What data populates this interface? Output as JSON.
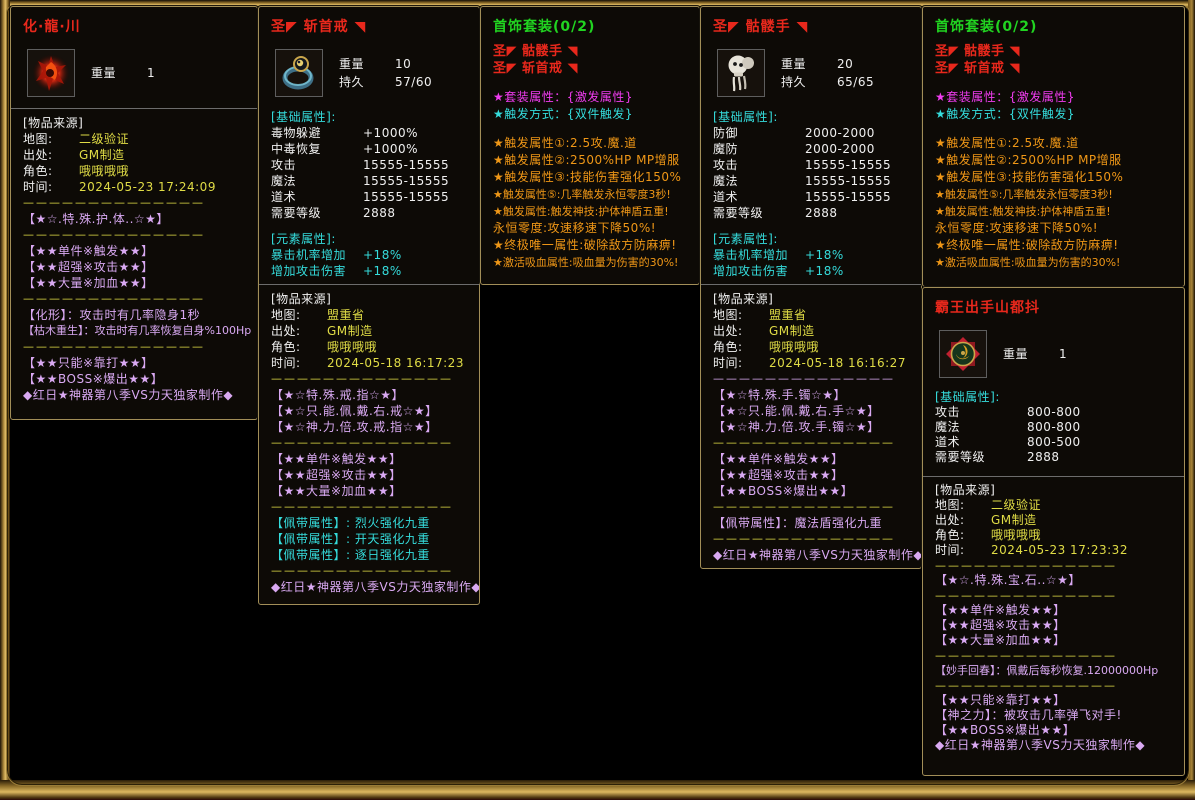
{
  "colors": {
    "red": "#e8281c",
    "green": "#21d421",
    "magenta": "#f03cf0",
    "cyan": "#35dcdc",
    "orange": "#ef9717",
    "yellow": "#e0dc46",
    "purple": "#d9a9f2",
    "white": "#f0f0f0",
    "panel_bg": "#0d0a06",
    "panel_border": "#a28e58",
    "divider": "#6c6c6c",
    "frame_gold": "#dcb860",
    "background": "#000000"
  },
  "separator": "——————————————",
  "panels": [
    {
      "id": "hua-long-chuan",
      "rows": [
        {
          "t": "title",
          "color": "red",
          "text": "化·龍·川",
          "name": "item-title"
        },
        {
          "t": "icon",
          "icon": "flame-beast-icon",
          "stats": [
            {
              "label": "重量",
              "value": "1"
            }
          ]
        },
        {
          "t": "divider"
        },
        {
          "t": "text",
          "color": "white",
          "text": "[物品来源]",
          "name": "source-header"
        },
        {
          "t": "kv",
          "label": "地图:",
          "value": "二级验证",
          "name": "source-map"
        },
        {
          "t": "kv",
          "label": "出处:",
          "value": "GM制造",
          "name": "source-origin"
        },
        {
          "t": "kv",
          "label": "角色:",
          "value": "哦哦哦哦",
          "name": "source-character"
        },
        {
          "t": "kv",
          "label": "时间:",
          "value": "2024-05-23 17:24:09",
          "name": "source-time"
        },
        {
          "t": "dashes",
          "color": "yellow"
        },
        {
          "t": "text",
          "color": "purple",
          "text": "【★☆.特.殊.护.体..☆★】"
        },
        {
          "t": "dashes",
          "color": "yellow"
        },
        {
          "t": "text",
          "color": "purple",
          "text": "【★★单件※触发★★】"
        },
        {
          "t": "text",
          "color": "purple",
          "text": "【★★超强※攻击★★】"
        },
        {
          "t": "text",
          "color": "purple",
          "text": "【★★大量※加血★★】"
        },
        {
          "t": "dashes",
          "color": "yellow"
        },
        {
          "t": "text",
          "color": "purple",
          "text": "【化形】：攻击时有几率隐身1秒"
        },
        {
          "t": "text",
          "color": "purple",
          "cls": "small",
          "text": "【枯木重生】：攻击时有几率恢复自身%100Hp"
        },
        {
          "t": "dashes",
          "color": "yellow"
        },
        {
          "t": "text",
          "color": "purple",
          "text": "【★★只能※靠打★★】"
        },
        {
          "t": "text",
          "color": "purple",
          "text": "【★★BOSS※爆出★★】"
        },
        {
          "t": "text",
          "color": "purple",
          "text": "◆红日★神器第八季VS力天独家制作◆",
          "name": "maker-credit"
        }
      ]
    },
    {
      "id": "zhan-shou-jie",
      "rows": [
        {
          "t": "title",
          "color": "red",
          "text": "圣◤ 斩首戒 ◥",
          "name": "item-title"
        },
        {
          "t": "icon",
          "icon": "ring-icon",
          "stats": [
            {
              "label": "重量",
              "value": "10"
            },
            {
              "label": "持久",
              "value": "57/60"
            }
          ]
        },
        {
          "t": "gap",
          "h": 4
        },
        {
          "t": "text",
          "color": "cyan",
          "text": "[基础属性]:",
          "name": "base-attrs-header"
        },
        {
          "t": "stat",
          "color": "white",
          "label": "毒物躲避",
          "value": "+1000%"
        },
        {
          "t": "stat",
          "color": "white",
          "label": "中毒恢复",
          "value": "+1000%"
        },
        {
          "t": "stat",
          "color": "white",
          "label": "攻击",
          "value": "15555-15555"
        },
        {
          "t": "stat",
          "color": "white",
          "label": "魔法",
          "value": "15555-15555"
        },
        {
          "t": "stat",
          "color": "white",
          "label": "道术",
          "value": "15555-15555"
        },
        {
          "t": "stat",
          "color": "white",
          "label": "需要等级",
          "value": "2888"
        },
        {
          "t": "gap",
          "h": 10
        },
        {
          "t": "text",
          "color": "cyan",
          "text": "[元素属性]:",
          "name": "element-attrs-header"
        },
        {
          "t": "stat",
          "color": "cyan",
          "label": "暴击机率增加",
          "value": "+18%"
        },
        {
          "t": "stat",
          "color": "cyan",
          "label": "增加攻击伤害",
          "value": "+18%"
        },
        {
          "t": "divider"
        },
        {
          "t": "text",
          "color": "white",
          "text": "[物品来源]",
          "name": "source-header"
        },
        {
          "t": "kv",
          "label": "地图:",
          "value": "盟重省",
          "name": "source-map"
        },
        {
          "t": "kv",
          "label": "出处:",
          "value": "GM制造",
          "name": "source-origin"
        },
        {
          "t": "kv",
          "label": "角色:",
          "value": "哦哦哦哦",
          "name": "source-character"
        },
        {
          "t": "kv",
          "label": "时间:",
          "value": "2024-05-18 16:17:23",
          "name": "source-time"
        },
        {
          "t": "dashes",
          "color": "yellow"
        },
        {
          "t": "text",
          "color": "purple",
          "text": "【★☆特.殊.戒.指☆★】"
        },
        {
          "t": "text",
          "color": "purple",
          "text": "【★☆只.能.佩.戴.右.戒☆★】"
        },
        {
          "t": "text",
          "color": "purple",
          "text": "【★☆神.力.倍.攻.戒.指☆★】"
        },
        {
          "t": "dashes",
          "color": "yellow"
        },
        {
          "t": "text",
          "color": "purple",
          "text": "【★★单件※触发★★】"
        },
        {
          "t": "text",
          "color": "purple",
          "text": "【★★超强※攻击★★】"
        },
        {
          "t": "text",
          "color": "purple",
          "text": "【★★大量※加血★★】"
        },
        {
          "t": "dashes",
          "color": "yellow"
        },
        {
          "t": "text",
          "color": "cyan",
          "text": "【佩带属性】: 烈火强化九重"
        },
        {
          "t": "text",
          "color": "cyan",
          "text": "【佩带属性】: 开天强化九重"
        },
        {
          "t": "text",
          "color": "cyan",
          "text": "【佩带属性】: 逐日强化九重"
        },
        {
          "t": "dashes",
          "color": "yellow"
        },
        {
          "t": "text",
          "color": "purple",
          "text": "◆红日★神器第八季VS力天独家制作◆",
          "name": "maker-credit"
        }
      ]
    },
    {
      "id": "jewelry-set-left",
      "rows": [
        {
          "t": "title",
          "color": "green",
          "text": "首饰套装(0/2)",
          "name": "set-title"
        },
        {
          "t": "text",
          "color": "red",
          "cls": "set-item",
          "text": "圣◤ 骷髅手 ◥",
          "name": "set-item-1"
        },
        {
          "t": "text",
          "color": "red",
          "cls": "set-item",
          "text": "圣◤ 斩首戒 ◥",
          "name": "set-item-2"
        },
        {
          "t": "gap",
          "h": 12
        },
        {
          "t": "text",
          "color": "magenta",
          "text": "★套装属性：{激发属性}"
        },
        {
          "t": "text",
          "color": "cyan",
          "text": "★触发方式：{双件触发}"
        },
        {
          "t": "gap",
          "h": 12
        },
        {
          "t": "text",
          "color": "orange",
          "text": "★触发属性①:2.5攻.魔.道"
        },
        {
          "t": "text",
          "color": "orange",
          "text": "★触发属性②:2500%HP MP增服"
        },
        {
          "t": "text",
          "color": "orange",
          "text": "★触发属性③:技能伤害强化150%"
        },
        {
          "t": "text",
          "color": "orange",
          "cls": "small",
          "text": "★触发属性⑤:几率触发永恒零度3秒!"
        },
        {
          "t": "text",
          "color": "orange",
          "cls": "small",
          "text": "★触发属性:触发神技:护体神盾五重!"
        },
        {
          "t": "text",
          "color": "orange",
          "text": "永恒零度:攻速移速下降50%!"
        },
        {
          "t": "text",
          "color": "orange",
          "text": "★终极唯一属性:破除敌方防麻痹!"
        },
        {
          "t": "text",
          "color": "orange",
          "cls": "small",
          "text": "★激活吸血属性:吸血量为伤害的30%!"
        }
      ]
    },
    {
      "id": "kulou-shou",
      "rows": [
        {
          "t": "title",
          "color": "red",
          "text": "圣◤ 骷髅手 ◥",
          "name": "item-title"
        },
        {
          "t": "icon",
          "icon": "skull-hand-icon",
          "stats": [
            {
              "label": "重量",
              "value": "20"
            },
            {
              "label": "持久",
              "value": "65/65"
            }
          ]
        },
        {
          "t": "gap",
          "h": 4
        },
        {
          "t": "text",
          "color": "cyan",
          "text": "[基础属性]:",
          "name": "base-attrs-header"
        },
        {
          "t": "stat",
          "color": "white",
          "label": "防御",
          "value": "2000-2000"
        },
        {
          "t": "stat",
          "color": "white",
          "label": "魔防",
          "value": "2000-2000"
        },
        {
          "t": "stat",
          "color": "white",
          "label": "攻击",
          "value": "15555-15555"
        },
        {
          "t": "stat",
          "color": "white",
          "label": "魔法",
          "value": "15555-15555"
        },
        {
          "t": "stat",
          "color": "white",
          "label": "道术",
          "value": "15555-15555"
        },
        {
          "t": "stat",
          "color": "white",
          "label": "需要等级",
          "value": "2888"
        },
        {
          "t": "gap",
          "h": 10
        },
        {
          "t": "text",
          "color": "cyan",
          "text": "[元素属性]:",
          "name": "element-attrs-header"
        },
        {
          "t": "stat",
          "color": "cyan",
          "label": "暴击机率增加",
          "value": "+18%"
        },
        {
          "t": "stat",
          "color": "cyan",
          "label": "增加攻击伤害",
          "value": "+18%"
        },
        {
          "t": "divider"
        },
        {
          "t": "text",
          "color": "white",
          "text": "[物品来源]",
          "name": "source-header"
        },
        {
          "t": "kv",
          "label": "地图:",
          "value": "盟重省",
          "name": "source-map"
        },
        {
          "t": "kv",
          "label": "出处:",
          "value": "GM制造",
          "name": "source-origin"
        },
        {
          "t": "kv",
          "label": "角色:",
          "value": "哦哦哦哦",
          "name": "source-character"
        },
        {
          "t": "kv",
          "label": "时间:",
          "value": "2024-05-18 16:16:27",
          "name": "source-time"
        },
        {
          "t": "dashes",
          "color": "purple"
        },
        {
          "t": "text",
          "color": "purple",
          "text": "【★☆特.殊.手.镯☆★】"
        },
        {
          "t": "text",
          "color": "purple",
          "text": "【★☆只.能.佩.戴.右.手☆★】"
        },
        {
          "t": "text",
          "color": "purple",
          "text": "【★☆神.力.倍.攻.手.镯☆★】"
        },
        {
          "t": "dashes",
          "color": "yellow"
        },
        {
          "t": "text",
          "color": "purple",
          "text": "【★★单件※触发★★】"
        },
        {
          "t": "text",
          "color": "purple",
          "text": "【★★超强※攻击★★】"
        },
        {
          "t": "text",
          "color": "purple",
          "text": "【★★BOSS※爆出★★】"
        },
        {
          "t": "dashes",
          "color": "yellow"
        },
        {
          "t": "text",
          "color": "purple",
          "text": "【佩带属性】：魔法盾强化九重"
        },
        {
          "t": "dashes",
          "color": "yellow"
        },
        {
          "t": "text",
          "color": "purple",
          "text": "◆红日★神器第八季VS力天独家制作◆",
          "name": "maker-credit"
        }
      ]
    },
    {
      "id": "jewelry-set-right",
      "rows": [
        {
          "t": "title",
          "color": "green",
          "text": "首饰套装(0/2)",
          "name": "set-title"
        },
        {
          "t": "text",
          "color": "red",
          "cls": "set-item",
          "text": "圣◤ 骷髅手 ◥",
          "name": "set-item-1"
        },
        {
          "t": "text",
          "color": "red",
          "cls": "set-item",
          "text": "圣◤ 斩首戒 ◥",
          "name": "set-item-2"
        },
        {
          "t": "gap",
          "h": 12
        },
        {
          "t": "text",
          "color": "magenta",
          "text": "★套装属性：{激发属性}"
        },
        {
          "t": "text",
          "color": "cyan",
          "text": "★触发方式：{双件触发}"
        },
        {
          "t": "gap",
          "h": 12
        },
        {
          "t": "text",
          "color": "orange",
          "text": "★触发属性①:2.5攻.魔.道"
        },
        {
          "t": "text",
          "color": "orange",
          "text": "★触发属性②:2500%HP MP增服"
        },
        {
          "t": "text",
          "color": "orange",
          "text": "★触发属性③:技能伤害强化150%"
        },
        {
          "t": "text",
          "color": "orange",
          "cls": "small",
          "text": "★触发属性⑤:几率触发永恒零度3秒!"
        },
        {
          "t": "text",
          "color": "orange",
          "cls": "small",
          "text": "★触发属性:触发神技:护体神盾五重!"
        },
        {
          "t": "text",
          "color": "orange",
          "text": "永恒零度:攻速移速下降50%!"
        },
        {
          "t": "text",
          "color": "orange",
          "text": "★终极唯一属性:破除敌方防麻痹!"
        },
        {
          "t": "text",
          "color": "orange",
          "cls": "small",
          "text": "★激活吸血属性:吸血量为伤害的30%!"
        }
      ]
    },
    {
      "id": "bawang-chushou",
      "rows": [
        {
          "t": "title",
          "color": "red",
          "text": "霸王出手山都抖",
          "name": "item-title"
        },
        {
          "t": "icon",
          "icon": "medallion-icon",
          "stats": [
            {
              "label": "重量",
              "value": "1"
            }
          ]
        },
        {
          "t": "gap",
          "h": 4
        },
        {
          "t": "text",
          "color": "cyan",
          "text": "[基础属性]:",
          "name": "base-attrs-header"
        },
        {
          "t": "stat",
          "color": "white",
          "label": "攻击",
          "value": "800-800"
        },
        {
          "t": "stat",
          "color": "white",
          "label": "魔法",
          "value": "800-800"
        },
        {
          "t": "stat",
          "color": "white",
          "label": "道术",
          "value": "800-500"
        },
        {
          "t": "stat",
          "color": "white",
          "label": "需要等级",
          "value": "2888"
        },
        {
          "t": "gap",
          "h": 6
        },
        {
          "t": "divider"
        },
        {
          "t": "text",
          "color": "white",
          "text": "[物品来源]",
          "name": "source-header"
        },
        {
          "t": "kv",
          "label": "地图:",
          "value": "二级验证",
          "name": "source-map"
        },
        {
          "t": "kv",
          "label": "出处:",
          "value": "GM制造",
          "name": "source-origin"
        },
        {
          "t": "kv",
          "label": "角色:",
          "value": "哦哦哦哦",
          "name": "source-character"
        },
        {
          "t": "kv",
          "label": "时间:",
          "value": "2024-05-23 17:23:32",
          "name": "source-time"
        },
        {
          "t": "dashes",
          "color": "yellow"
        },
        {
          "t": "text",
          "color": "purple",
          "text": "【★☆.特.殊.宝.石..☆★】"
        },
        {
          "t": "dashes",
          "color": "yellow"
        },
        {
          "t": "text",
          "color": "purple",
          "text": "【★★单件※触发★★】"
        },
        {
          "t": "text",
          "color": "purple",
          "text": "【★★超强※攻击★★】"
        },
        {
          "t": "text",
          "color": "purple",
          "text": "【★★大量※加血★★】"
        },
        {
          "t": "dashes",
          "color": "yellow"
        },
        {
          "t": "text",
          "color": "purple",
          "cls": "small",
          "text": "【妙手回春】：佩戴后每秒恢复.12000000Hp"
        },
        {
          "t": "dashes",
          "color": "yellow"
        },
        {
          "t": "text",
          "color": "purple",
          "text": "【★★只能※靠打★★】"
        },
        {
          "t": "text",
          "color": "purple",
          "text": "【神之力】：被攻击几率弹飞对手!"
        },
        {
          "t": "text",
          "color": "purple",
          "text": "【★★BOSS※爆出★★】"
        },
        {
          "t": "text",
          "color": "purple",
          "text": "◆红日★神器第八季VS力天独家制作◆",
          "name": "maker-credit"
        }
      ]
    }
  ]
}
